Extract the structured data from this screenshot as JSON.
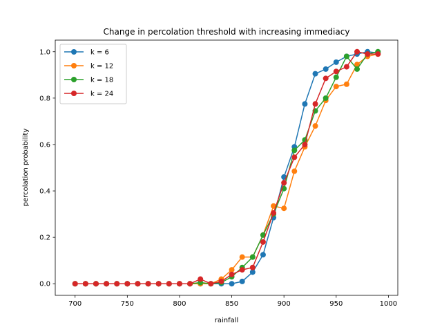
{
  "chart_data": {
    "type": "line",
    "title": "Change in percolation threshold with increasing immediacy",
    "xlabel": "rainfall",
    "ylabel": "percolation probability",
    "xlim": [
      681,
      1009
    ],
    "ylim": [
      -0.05,
      1.05
    ],
    "xticks": [
      "700",
      "750",
      "800",
      "850",
      "900",
      "950",
      "1000"
    ],
    "yticks": [
      "0.0",
      "0.2",
      "0.4",
      "0.6",
      "0.8",
      "1.0"
    ],
    "grid": false,
    "legend_position": "top-left",
    "x": [
      700,
      710,
      720,
      730,
      740,
      750,
      760,
      770,
      780,
      790,
      800,
      810,
      820,
      830,
      840,
      850,
      860,
      870,
      880,
      890,
      900,
      910,
      920,
      930,
      940,
      950,
      960,
      970,
      980,
      990
    ],
    "series": [
      {
        "name": "k = 6",
        "color": "#1f77b4",
        "values": [
          0,
          0,
          0,
          0,
          0,
          0,
          0,
          0,
          0,
          0,
          0,
          0,
          0,
          0,
          0,
          0,
          0.01,
          0.05,
          0.125,
          0.285,
          0.46,
          0.59,
          0.775,
          0.905,
          0.925,
          0.955,
          0.98,
          0.99,
          1.0,
          0.995
        ]
      },
      {
        "name": "k = 12",
        "color": "#ff7f0e",
        "values": [
          0,
          0,
          0,
          0,
          0,
          0,
          0,
          0,
          0,
          0,
          0,
          0,
          0,
          0,
          0.02,
          0.06,
          0.115,
          0.115,
          0.21,
          0.335,
          0.325,
          0.485,
          0.59,
          0.68,
          0.79,
          0.85,
          0.86,
          0.945,
          0.98,
          0.99
        ]
      },
      {
        "name": "k = 18",
        "color": "#2ca02c",
        "values": [
          0,
          0,
          0,
          0,
          0,
          0,
          0,
          0,
          0,
          0,
          0,
          0,
          0.005,
          0,
          0.005,
          0.03,
          0.07,
          0.115,
          0.21,
          0.3,
          0.41,
          0.575,
          0.62,
          0.745,
          0.8,
          0.89,
          0.98,
          0.925,
          0.99,
          1.0
        ]
      },
      {
        "name": "k = 24",
        "color": "#d62728",
        "values": [
          0,
          0,
          0,
          0,
          0,
          0,
          0,
          0,
          0,
          0,
          0,
          0,
          0.02,
          0,
          0.01,
          0.04,
          0.06,
          0.07,
          0.18,
          0.305,
          0.435,
          0.545,
          0.6,
          0.775,
          0.885,
          0.915,
          0.935,
          1.0,
          0.99,
          0.99
        ]
      }
    ]
  }
}
